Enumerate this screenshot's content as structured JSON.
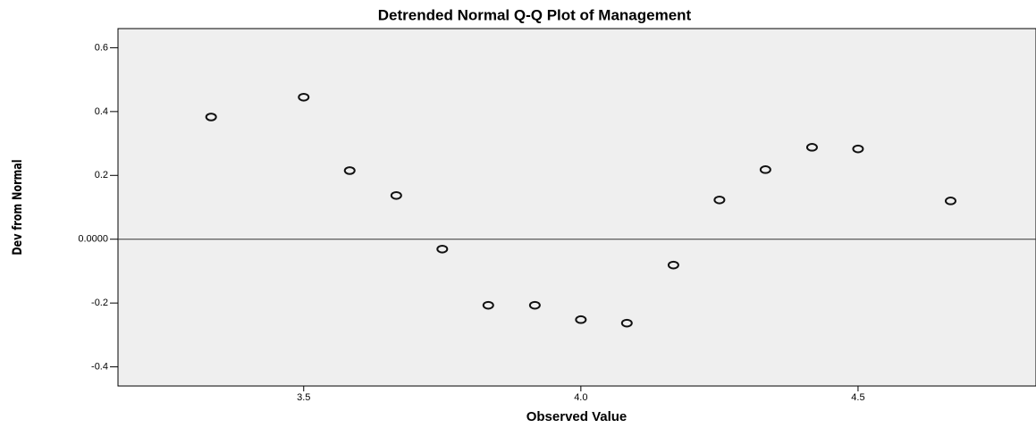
{
  "chart_data": {
    "type": "scatter",
    "title": "Detrended Normal Q-Q Plot of Management",
    "x_label": "Observed Value",
    "y_label": "Dev from Normal",
    "x": [
      3.333,
      3.5,
      3.583,
      3.667,
      3.75,
      3.833,
      3.917,
      4.0,
      4.083,
      4.167,
      4.25,
      4.333,
      4.417,
      4.5,
      4.667
    ],
    "values": [
      0.383,
      0.445,
      0.215,
      0.137,
      -0.031,
      -0.207,
      -0.207,
      -0.252,
      -0.263,
      -0.081,
      0.123,
      0.218,
      0.288,
      0.283,
      0.12
    ],
    "color": "#111111",
    "xlim": [
      3.165,
      4.821
    ],
    "ylim": [
      -0.46,
      0.66
    ],
    "xticks": [
      3.5,
      {
        "value": 4,
        "label": "4.0"
      },
      4.5
    ],
    "yticks": [
      0.6,
      0.4,
      0.2,
      {
        "value": 0,
        "label": "0.0000"
      },
      -0.2,
      -0.4
    ],
    "reference_line": 0
  }
}
